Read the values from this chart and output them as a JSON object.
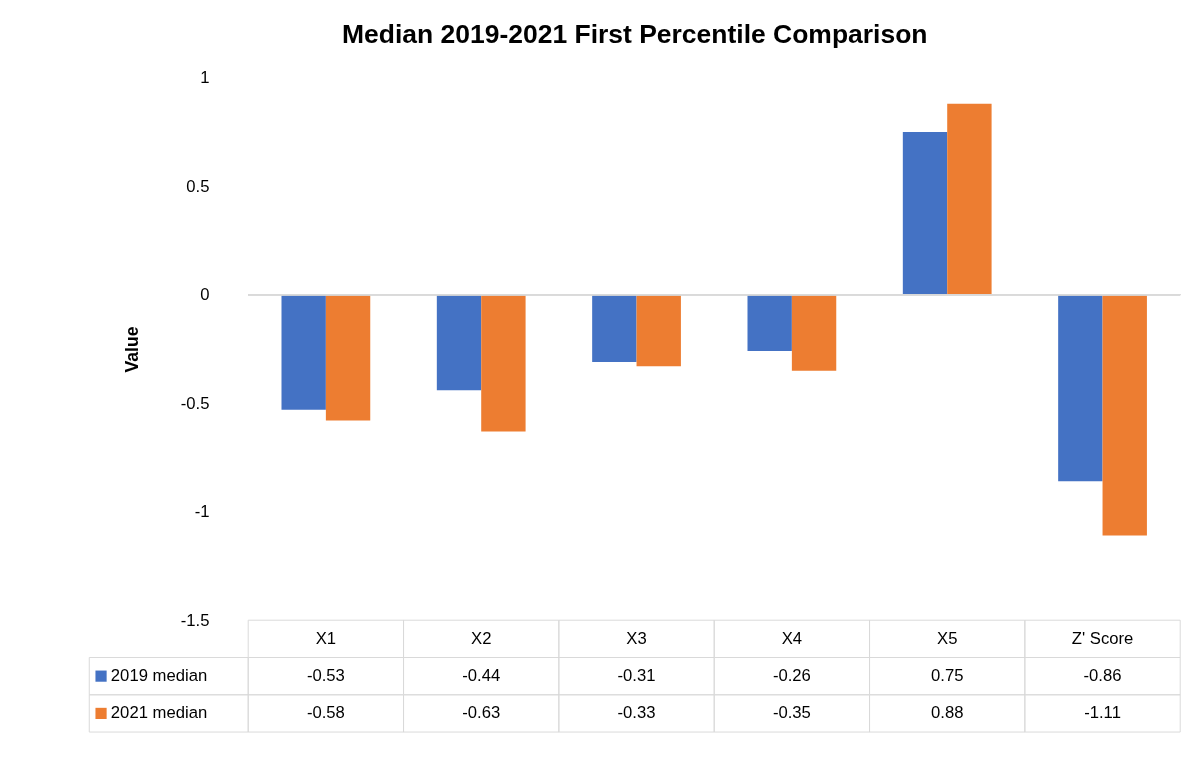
{
  "chart_data": {
    "type": "bar",
    "title": "Median 2019-2021 First Percentile Comparison",
    "ylabel": "Value",
    "categories": [
      "X1",
      "X2",
      "X3",
      "X4",
      "X5",
      "Z' Score"
    ],
    "series": [
      {
        "name": "2019 median",
        "color": "#4472c4",
        "values": [
          -0.53,
          -0.44,
          -0.31,
          -0.26,
          0.75,
          -0.86
        ]
      },
      {
        "name": "2021 median",
        "color": "#ed7d31",
        "values": [
          -0.58,
          -0.63,
          -0.33,
          -0.35,
          0.88,
          -1.11
        ]
      }
    ],
    "ylim": [
      -1.5,
      1
    ],
    "yticks": [
      -1.5,
      -1,
      -0.5,
      0,
      0.5,
      1
    ],
    "grid": false,
    "ref_lines": [
      {
        "axis": "y",
        "value": 0,
        "color": "#d9d9d9"
      }
    ],
    "legend": "bottom",
    "data_labels": true
  }
}
